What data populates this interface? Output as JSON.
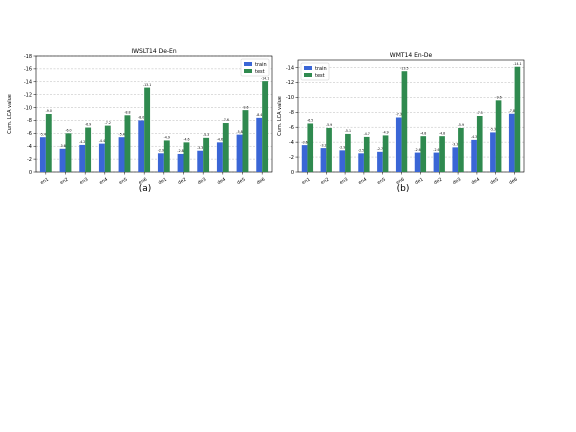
{
  "subfigure_labels": [
    "(a)",
    "(b)"
  ],
  "chart_data": [
    {
      "type": "bar",
      "title": "IWSLT14 De-En",
      "xlabel": "",
      "ylabel": "Cum. LCA value",
      "ylim": [
        0,
        -18
      ],
      "yticks": [
        0,
        -2,
        -4,
        -6,
        -8,
        -10,
        -12,
        -14,
        -16,
        -18
      ],
      "grid": "horizontal",
      "legend": "top-right",
      "categories": [
        "en1",
        "en2",
        "en3",
        "en4",
        "en5",
        "en6",
        "de1",
        "de2",
        "de3",
        "de4",
        "de5",
        "de6"
      ],
      "series": [
        {
          "name": "train",
          "color": "#3a66d6",
          "values": [
            -5.4,
            -3.6,
            -4.2,
            -4.4,
            -5.4,
            -8.0,
            -2.9,
            -2.8,
            -3.3,
            -4.6,
            -5.8,
            -8.4
          ],
          "labels": [
            "-5.4",
            "-3.6",
            "-4.2",
            "-4.4",
            "-5.4",
            "-8.0",
            "-2.9",
            "-2.8",
            "-3.3",
            "-4.6",
            "-5.8",
            "-8.4"
          ]
        },
        {
          "name": "test",
          "color": "#2f8a4f",
          "values": [
            -9.0,
            -6.0,
            -6.9,
            -7.2,
            -8.8,
            -13.1,
            -4.9,
            -4.6,
            -5.3,
            -7.6,
            -9.6,
            -14.1
          ],
          "labels": [
            "-9.0",
            "-6.0",
            "-6.9",
            "-7.2",
            "-8.8",
            "-13.1",
            "-4.9",
            "-4.6",
            "-5.3",
            "-7.6",
            "-9.6",
            "-14.1"
          ]
        }
      ]
    },
    {
      "type": "bar",
      "title": "WMT14 En-De",
      "xlabel": "",
      "ylabel": "Cum. LCA value",
      "ylim": [
        0,
        -15
      ],
      "yticks": [
        0,
        -2,
        -4,
        -6,
        -8,
        -10,
        -12,
        -14
      ],
      "grid": "horizontal",
      "legend": "top-left",
      "categories": [
        "en1",
        "en2",
        "en3",
        "en4",
        "en5",
        "en6",
        "de1",
        "de2",
        "de3",
        "de4",
        "de5",
        "de6"
      ],
      "series": [
        {
          "name": "train",
          "color": "#3a66d6",
          "values": [
            -3.6,
            -3.2,
            -2.9,
            -2.5,
            -2.7,
            -7.3,
            -2.6,
            -2.6,
            -3.3,
            -4.3,
            -5.3,
            -7.8
          ],
          "labels": [
            "-3.6",
            "-3.2",
            "-2.9",
            "-2.5",
            "-2.7",
            "-7.3",
            "-2.6",
            "-2.6",
            "-3.3",
            "-4.3",
            "-5.3",
            "-7.8"
          ]
        },
        {
          "name": "test",
          "color": "#2f8a4f",
          "values": [
            -6.5,
            -5.9,
            -5.1,
            -4.7,
            -4.9,
            -13.5,
            -4.8,
            -4.8,
            -5.9,
            -7.5,
            -9.6,
            -14.1
          ],
          "labels": [
            "-6.5",
            "-5.9",
            "-5.1",
            "-4.7",
            "-4.9",
            "-13.5",
            "-4.8",
            "-4.8",
            "-5.9",
            "-7.5",
            "-9.6",
            "-14.1"
          ]
        }
      ]
    }
  ]
}
